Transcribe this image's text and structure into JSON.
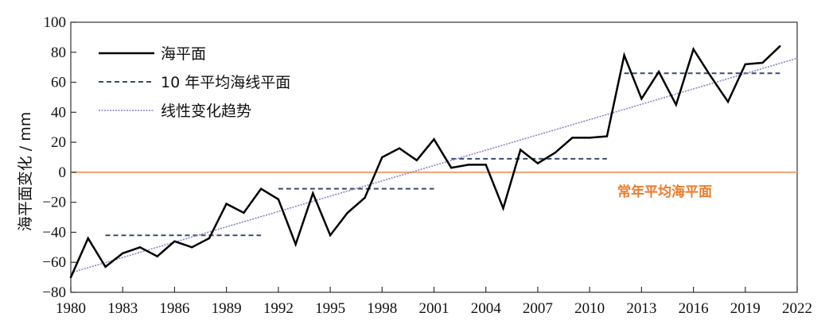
{
  "chart_data": {
    "type": "line",
    "ylabel": "海平面变化 / mm",
    "ylim": [
      -80,
      100
    ],
    "xlim": [
      1980,
      2022
    ],
    "yticks": [
      100,
      80,
      60,
      40,
      20,
      0,
      -20,
      -40,
      -60,
      -80
    ],
    "xticks": [
      1980,
      1983,
      1986,
      1989,
      1992,
      1995,
      1998,
      2001,
      2004,
      2007,
      2010,
      2013,
      2016,
      2019,
      2022
    ],
    "legend_position": "top-left",
    "grid": false,
    "series": [
      {
        "name": "海平面",
        "style": "solid",
        "color": "#000000",
        "x": [
          1980,
          1981,
          1982,
          1983,
          1984,
          1985,
          1986,
          1987,
          1988,
          1989,
          1990,
          1991,
          1992,
          1993,
          1994,
          1995,
          1996,
          1997,
          1998,
          1999,
          2000,
          2001,
          2002,
          2003,
          2004,
          2005,
          2006,
          2007,
          2008,
          2009,
          2010,
          2011,
          2012,
          2013,
          2014,
          2015,
          2016,
          2017,
          2018,
          2019,
          2020,
          2021
        ],
        "values": [
          -70,
          -44,
          -63,
          -54,
          -50,
          -56,
          -46,
          -50,
          -44,
          -21,
          -27,
          -11,
          -18,
          -48,
          -14,
          -42,
          -27,
          -17,
          10,
          16,
          8,
          22,
          3,
          5,
          5,
          -24,
          15,
          6,
          13,
          23,
          23,
          24,
          78,
          49,
          67,
          45,
          82,
          64,
          47,
          72,
          73,
          84
        ]
      },
      {
        "name": "10 年平均海线平面",
        "style": "dashed",
        "color": "#3a4a6b",
        "segments": [
          {
            "x": [
              1982,
              1991
            ],
            "value": -42
          },
          {
            "x": [
              1992,
              2001
            ],
            "value": -11
          },
          {
            "x": [
              2002,
              2011
            ],
            "value": 9
          },
          {
            "x": [
              2012,
              2021
            ],
            "value": 66
          }
        ]
      },
      {
        "name": "线性变化趋势",
        "style": "dotted",
        "color": "#8a80c8",
        "x": [
          1980,
          2022
        ],
        "values": [
          -67,
          76
        ]
      }
    ],
    "reference_line": {
      "value": 0,
      "label": "常年平均海平面",
      "color": "#f4a36b",
      "label_color": "#f07a2a"
    }
  }
}
